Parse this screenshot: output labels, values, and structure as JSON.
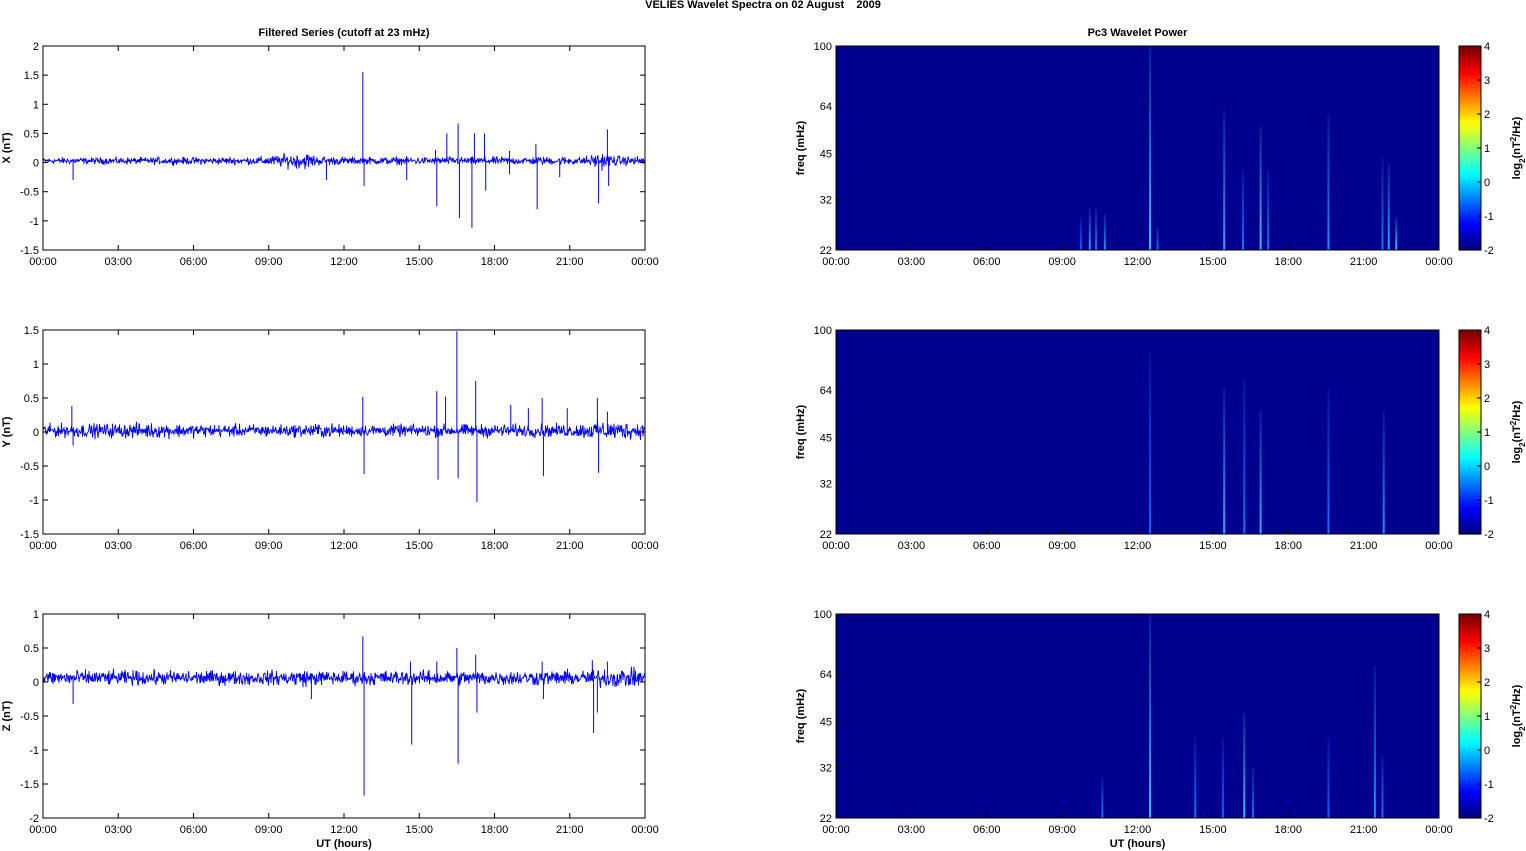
{
  "figure": {
    "title": "VELIES Wavelet Spectra on 02 August    2009",
    "left_column_title": "Filtered Series (cutoff at 23 mHz)",
    "right_column_title": "Pc3 Wavelet Power",
    "xlabel": "UT (hours)",
    "x_ticks": [
      "00:00",
      "03:00",
      "06:00",
      "09:00",
      "12:00",
      "15:00",
      "18:00",
      "21:00",
      "00:00"
    ]
  },
  "chart_data": [
    {
      "type": "line",
      "id": "x",
      "ylabel": "X (nT)",
      "ylim": [
        -1.5,
        2
      ],
      "yticks": [
        -1.5,
        -1,
        -0.5,
        0,
        0.5,
        1,
        1.5,
        2
      ],
      "ytick_labels": [
        "-1.5",
        "-1",
        "-0.5",
        "0",
        "0.5",
        "1",
        "1.5",
        "2"
      ],
      "color": "#0000ff",
      "baseline": 0.03,
      "noise_envelope": [
        [
          0,
          0.07
        ],
        [
          8.5,
          0.08
        ],
        [
          9.5,
          0.14
        ],
        [
          10.5,
          0.18
        ],
        [
          11,
          0.1
        ],
        [
          12.5,
          0.08
        ],
        [
          21.5,
          0.09
        ],
        [
          22.3,
          0.18
        ],
        [
          23,
          0.1
        ],
        [
          24,
          0.1
        ]
      ],
      "spikes": [
        [
          1.2,
          -0.3
        ],
        [
          11.3,
          -0.3
        ],
        [
          12.75,
          1.55
        ],
        [
          12.8,
          -0.4
        ],
        [
          14.5,
          -0.3
        ],
        [
          15.65,
          0.22
        ],
        [
          15.7,
          -0.75
        ],
        [
          16.1,
          0.5
        ],
        [
          16.55,
          0.67
        ],
        [
          16.6,
          -0.95
        ],
        [
          17.1,
          -1.12
        ],
        [
          17.2,
          0.5
        ],
        [
          17.6,
          0.5
        ],
        [
          17.65,
          -0.48
        ],
        [
          18.6,
          0.2
        ],
        [
          18.6,
          -0.2
        ],
        [
          19.65,
          0.32
        ],
        [
          19.7,
          -0.8
        ],
        [
          20.6,
          -0.25
        ],
        [
          22.15,
          -0.7
        ],
        [
          22.5,
          0.57
        ],
        [
          22.55,
          -0.4
        ]
      ]
    },
    {
      "type": "line",
      "id": "y",
      "ylabel": "Y (nT)",
      "ylim": [
        -1.5,
        1.5
      ],
      "yticks": [
        -1.5,
        -1,
        -0.5,
        0,
        0.5,
        1,
        1.5
      ],
      "ytick_labels": [
        "-1.5",
        "-1",
        "-0.5",
        "0",
        "0.5",
        "1",
        "1.5"
      ],
      "color": "#0000ff",
      "baseline": 0.02,
      "noise_envelope": [
        [
          0,
          0.12
        ],
        [
          4,
          0.14
        ],
        [
          6,
          0.12
        ],
        [
          10,
          0.11
        ],
        [
          11,
          0.14
        ],
        [
          12,
          0.11
        ],
        [
          21,
          0.12
        ],
        [
          22.5,
          0.18
        ],
        [
          24,
          0.14
        ]
      ],
      "spikes": [
        [
          1.15,
          0.38
        ],
        [
          1.2,
          -0.2
        ],
        [
          12.75,
          0.52
        ],
        [
          12.8,
          -0.62
        ],
        [
          15.7,
          0.6
        ],
        [
          15.75,
          -0.7
        ],
        [
          16.05,
          0.52
        ],
        [
          16.5,
          1.48
        ],
        [
          16.55,
          -0.68
        ],
        [
          17.25,
          0.75
        ],
        [
          17.3,
          -1.03
        ],
        [
          18.65,
          0.4
        ],
        [
          19.35,
          0.35
        ],
        [
          19.9,
          0.5
        ],
        [
          19.95,
          -0.65
        ],
        [
          20.9,
          0.35
        ],
        [
          22.1,
          0.5
        ],
        [
          22.15,
          -0.6
        ],
        [
          22.5,
          0.3
        ]
      ]
    },
    {
      "type": "line",
      "id": "z",
      "ylabel": "Z (nT)",
      "ylim": [
        -2,
        1
      ],
      "yticks": [
        -2,
        -1.5,
        -1,
        -0.5,
        0,
        0.5,
        1
      ],
      "ytick_labels": [
        "-2",
        "-1.5",
        "-1",
        "-0.5",
        "0",
        "0.5",
        "1"
      ],
      "color": "#0000ff",
      "baseline": 0.06,
      "noise_envelope": [
        [
          0,
          0.14
        ],
        [
          9,
          0.13
        ],
        [
          10.5,
          0.16
        ],
        [
          11,
          0.13
        ],
        [
          21.5,
          0.14
        ],
        [
          22.5,
          0.18
        ],
        [
          24,
          0.16
        ]
      ],
      "spikes": [
        [
          1.2,
          -0.32
        ],
        [
          10.7,
          -0.25
        ],
        [
          12.75,
          0.67
        ],
        [
          12.8,
          -1.67
        ],
        [
          14.65,
          0.3
        ],
        [
          14.7,
          -0.92
        ],
        [
          15.7,
          0.3
        ],
        [
          16.5,
          0.5
        ],
        [
          16.55,
          -1.2
        ],
        [
          17.25,
          0.4
        ],
        [
          17.3,
          -0.45
        ],
        [
          19.9,
          0.3
        ],
        [
          19.95,
          -0.25
        ],
        [
          21.9,
          0.32
        ],
        [
          21.95,
          -0.75
        ],
        [
          22.1,
          -0.45
        ],
        [
          22.5,
          0.3
        ]
      ]
    },
    {
      "type": "heatmap",
      "id": "wx",
      "ylabel": "freq (mHz)",
      "yscale": "log",
      "ylim": [
        22,
        100
      ],
      "yticks": [
        22,
        32,
        45,
        64,
        100
      ],
      "colorbar_label": "log2(nT2/Hz)",
      "clim": [
        -2,
        4
      ],
      "cticks": [
        -2,
        -1,
        0,
        1,
        2,
        3,
        4
      ],
      "background": "#00008f",
      "streaks": [
        [
          9.75,
          22,
          28,
          "#1060ff"
        ],
        [
          10.1,
          22,
          30,
          "#2fa0ff"
        ],
        [
          10.35,
          22,
          30,
          "#1a7aff"
        ],
        [
          10.7,
          22,
          29,
          "#2090ff"
        ],
        [
          12.5,
          22,
          100,
          "#3fbfff"
        ],
        [
          12.8,
          22,
          26,
          "#1a70ff"
        ],
        [
          15.45,
          22,
          62,
          "#2aa8ff"
        ],
        [
          16.2,
          22,
          40,
          "#1a70ff"
        ],
        [
          16.9,
          22,
          55,
          "#3fc0ff"
        ],
        [
          17.2,
          22,
          40,
          "#1a70ff"
        ],
        [
          19.6,
          22,
          60,
          "#2090ff"
        ],
        [
          21.75,
          22,
          44,
          "#1a70ff"
        ],
        [
          22.0,
          22,
          42,
          "#2aa8ff"
        ],
        [
          22.3,
          22,
          28,
          "#3fc0ff"
        ]
      ]
    },
    {
      "type": "heatmap",
      "id": "wy",
      "ylabel": "freq (mHz)",
      "yscale": "log",
      "ylim": [
        22,
        100
      ],
      "yticks": [
        22,
        32,
        45,
        64,
        100
      ],
      "colorbar_label": "log2(nT2/Hz)",
      "clim": [
        -2,
        4
      ],
      "cticks": [
        -2,
        -1,
        0,
        1,
        2,
        3,
        4
      ],
      "background": "#00008f",
      "streaks": [
        [
          12.5,
          22,
          85,
          "#1a60ff"
        ],
        [
          15.45,
          22,
          65,
          "#2fb0ff"
        ],
        [
          16.25,
          22,
          70,
          "#1a70ff"
        ],
        [
          16.9,
          22,
          55,
          "#2fb0ff"
        ],
        [
          19.6,
          22,
          65,
          "#1a70ff"
        ],
        [
          21.8,
          22,
          55,
          "#2090ff"
        ]
      ]
    },
    {
      "type": "heatmap",
      "id": "wz",
      "ylabel": "freq (mHz)",
      "yscale": "log",
      "ylim": [
        22,
        100
      ],
      "yticks": [
        22,
        32,
        45,
        64,
        100
      ],
      "colorbar_label": "log2(nT2/Hz)",
      "clim": [
        -2,
        4
      ],
      "cticks": [
        -2,
        -1,
        0,
        1,
        2,
        3,
        4
      ],
      "background": "#00008f",
      "streaks": [
        [
          10.6,
          22,
          30,
          "#1a70ff"
        ],
        [
          12.5,
          22,
          100,
          "#3fbfff"
        ],
        [
          14.3,
          22,
          40,
          "#1a70ff"
        ],
        [
          15.4,
          22,
          40,
          "#1a60ff"
        ],
        [
          16.25,
          22,
          48,
          "#3fc0ff"
        ],
        [
          16.6,
          22,
          32,
          "#1a70ff"
        ],
        [
          19.6,
          22,
          40,
          "#1a60ff"
        ],
        [
          21.45,
          22,
          68,
          "#2090ff"
        ],
        [
          21.75,
          22,
          35,
          "#1a70ff"
        ]
      ]
    }
  ]
}
